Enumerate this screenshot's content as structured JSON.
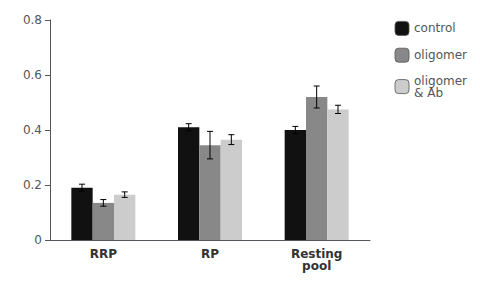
{
  "chart_data": {
    "type": "bar",
    "categories": [
      "RRP",
      "RP",
      "Resting\npool"
    ],
    "series": [
      {
        "name": "control",
        "color": "#111111",
        "values": [
          0.19,
          0.41,
          0.4
        ],
        "errors": [
          0.013,
          0.013,
          0.013
        ]
      },
      {
        "name": "oligomer",
        "color": "#888888",
        "values": [
          0.135,
          0.345,
          0.52
        ],
        "errors": [
          0.012,
          0.05,
          0.04
        ]
      },
      {
        "name": "oligomer\n& Ab",
        "color": "#cccccc",
        "values": [
          0.165,
          0.365,
          0.475
        ],
        "errors": [
          0.01,
          0.018,
          0.015
        ]
      }
    ],
    "ylim": [
      0,
      0.8
    ],
    "yticks": [
      0,
      0.2,
      0.4,
      0.6,
      0.8
    ],
    "grid": false,
    "legend": "right"
  }
}
